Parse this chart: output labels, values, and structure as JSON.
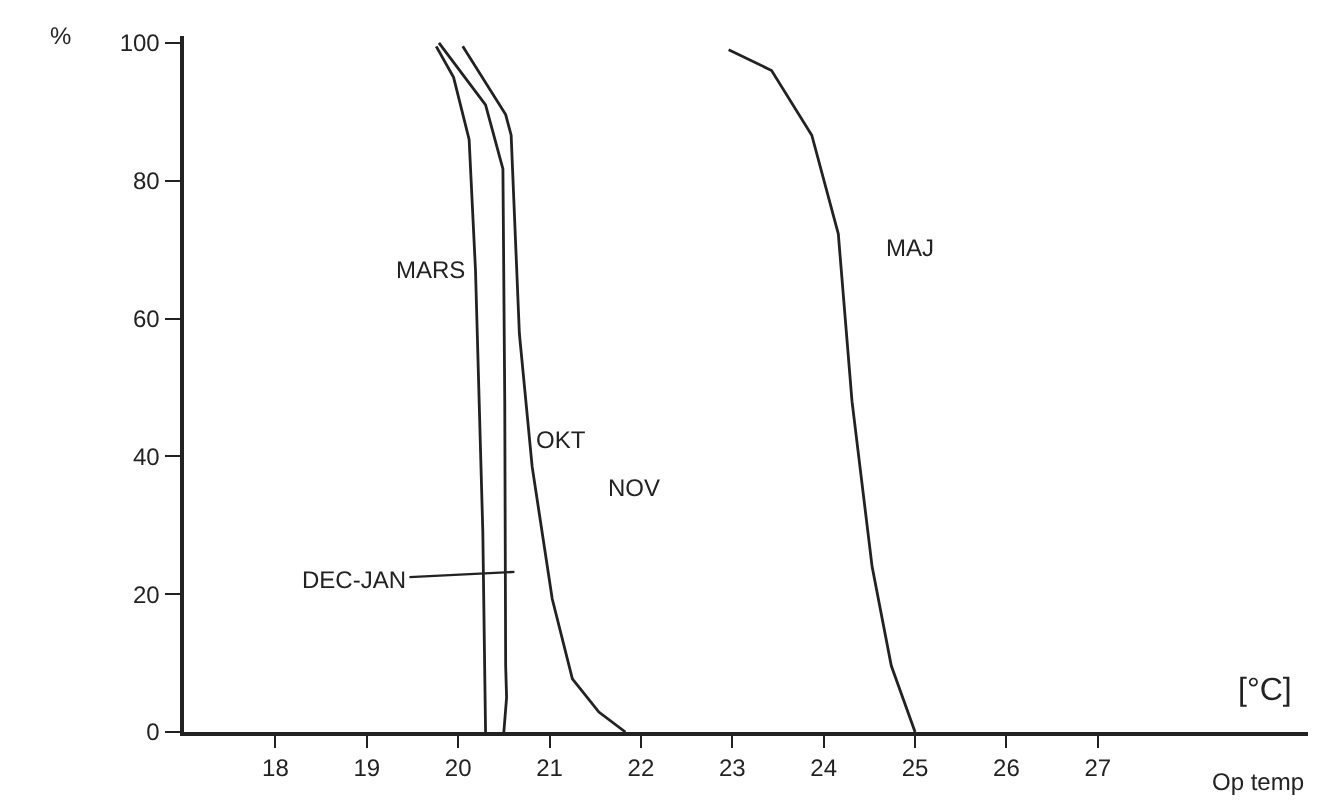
{
  "chart_data": {
    "type": "line",
    "xlabel": "Op temp",
    "ylabel": "%",
    "xlim": [
      17,
      29.3
    ],
    "ylim": [
      0,
      101
    ],
    "xticks": [
      18,
      19,
      20,
      21,
      22,
      23,
      24,
      25,
      26,
      27
    ],
    "yticks": [
      0,
      20,
      40,
      60,
      80,
      100
    ],
    "marker": "none",
    "line_style": "solid",
    "series": [
      {
        "color": "#222222",
        "x": [
          19.76,
          19.95,
          20.12,
          20.19,
          20.27,
          20.3
        ],
        "values": [
          99.5,
          95,
          86,
          67,
          29,
          0
        ]
      },
      {
        "color": "#222222",
        "x": [
          19.79,
          20.3,
          20.49,
          20.51,
          20.52,
          20.53,
          20.5
        ],
        "values": [
          100,
          91,
          81.7,
          48,
          9.6,
          5,
          0
        ]
      },
      {
        "color": "#222222",
        "x": [
          20.05,
          20.52,
          20.58,
          20.67,
          20.81,
          21.03,
          21.25,
          21.54,
          21.83
        ],
        "values": [
          99.5,
          89.6,
          86.6,
          57.8,
          38.5,
          19.3,
          7.7,
          2.9,
          0
        ]
      },
      {
        "color": "#222222",
        "x": [
          22.96,
          23.43,
          23.87,
          24.16,
          24.31,
          24.53,
          24.74,
          25.0
        ],
        "values": [
          99,
          96,
          86.6,
          72.3,
          48,
          24,
          9.6,
          0
        ]
      }
    ],
    "annotations": [
      "MARS",
      "DEC-JAN",
      "OKT",
      "NOV",
      "MAJ",
      "[°C]"
    ]
  }
}
